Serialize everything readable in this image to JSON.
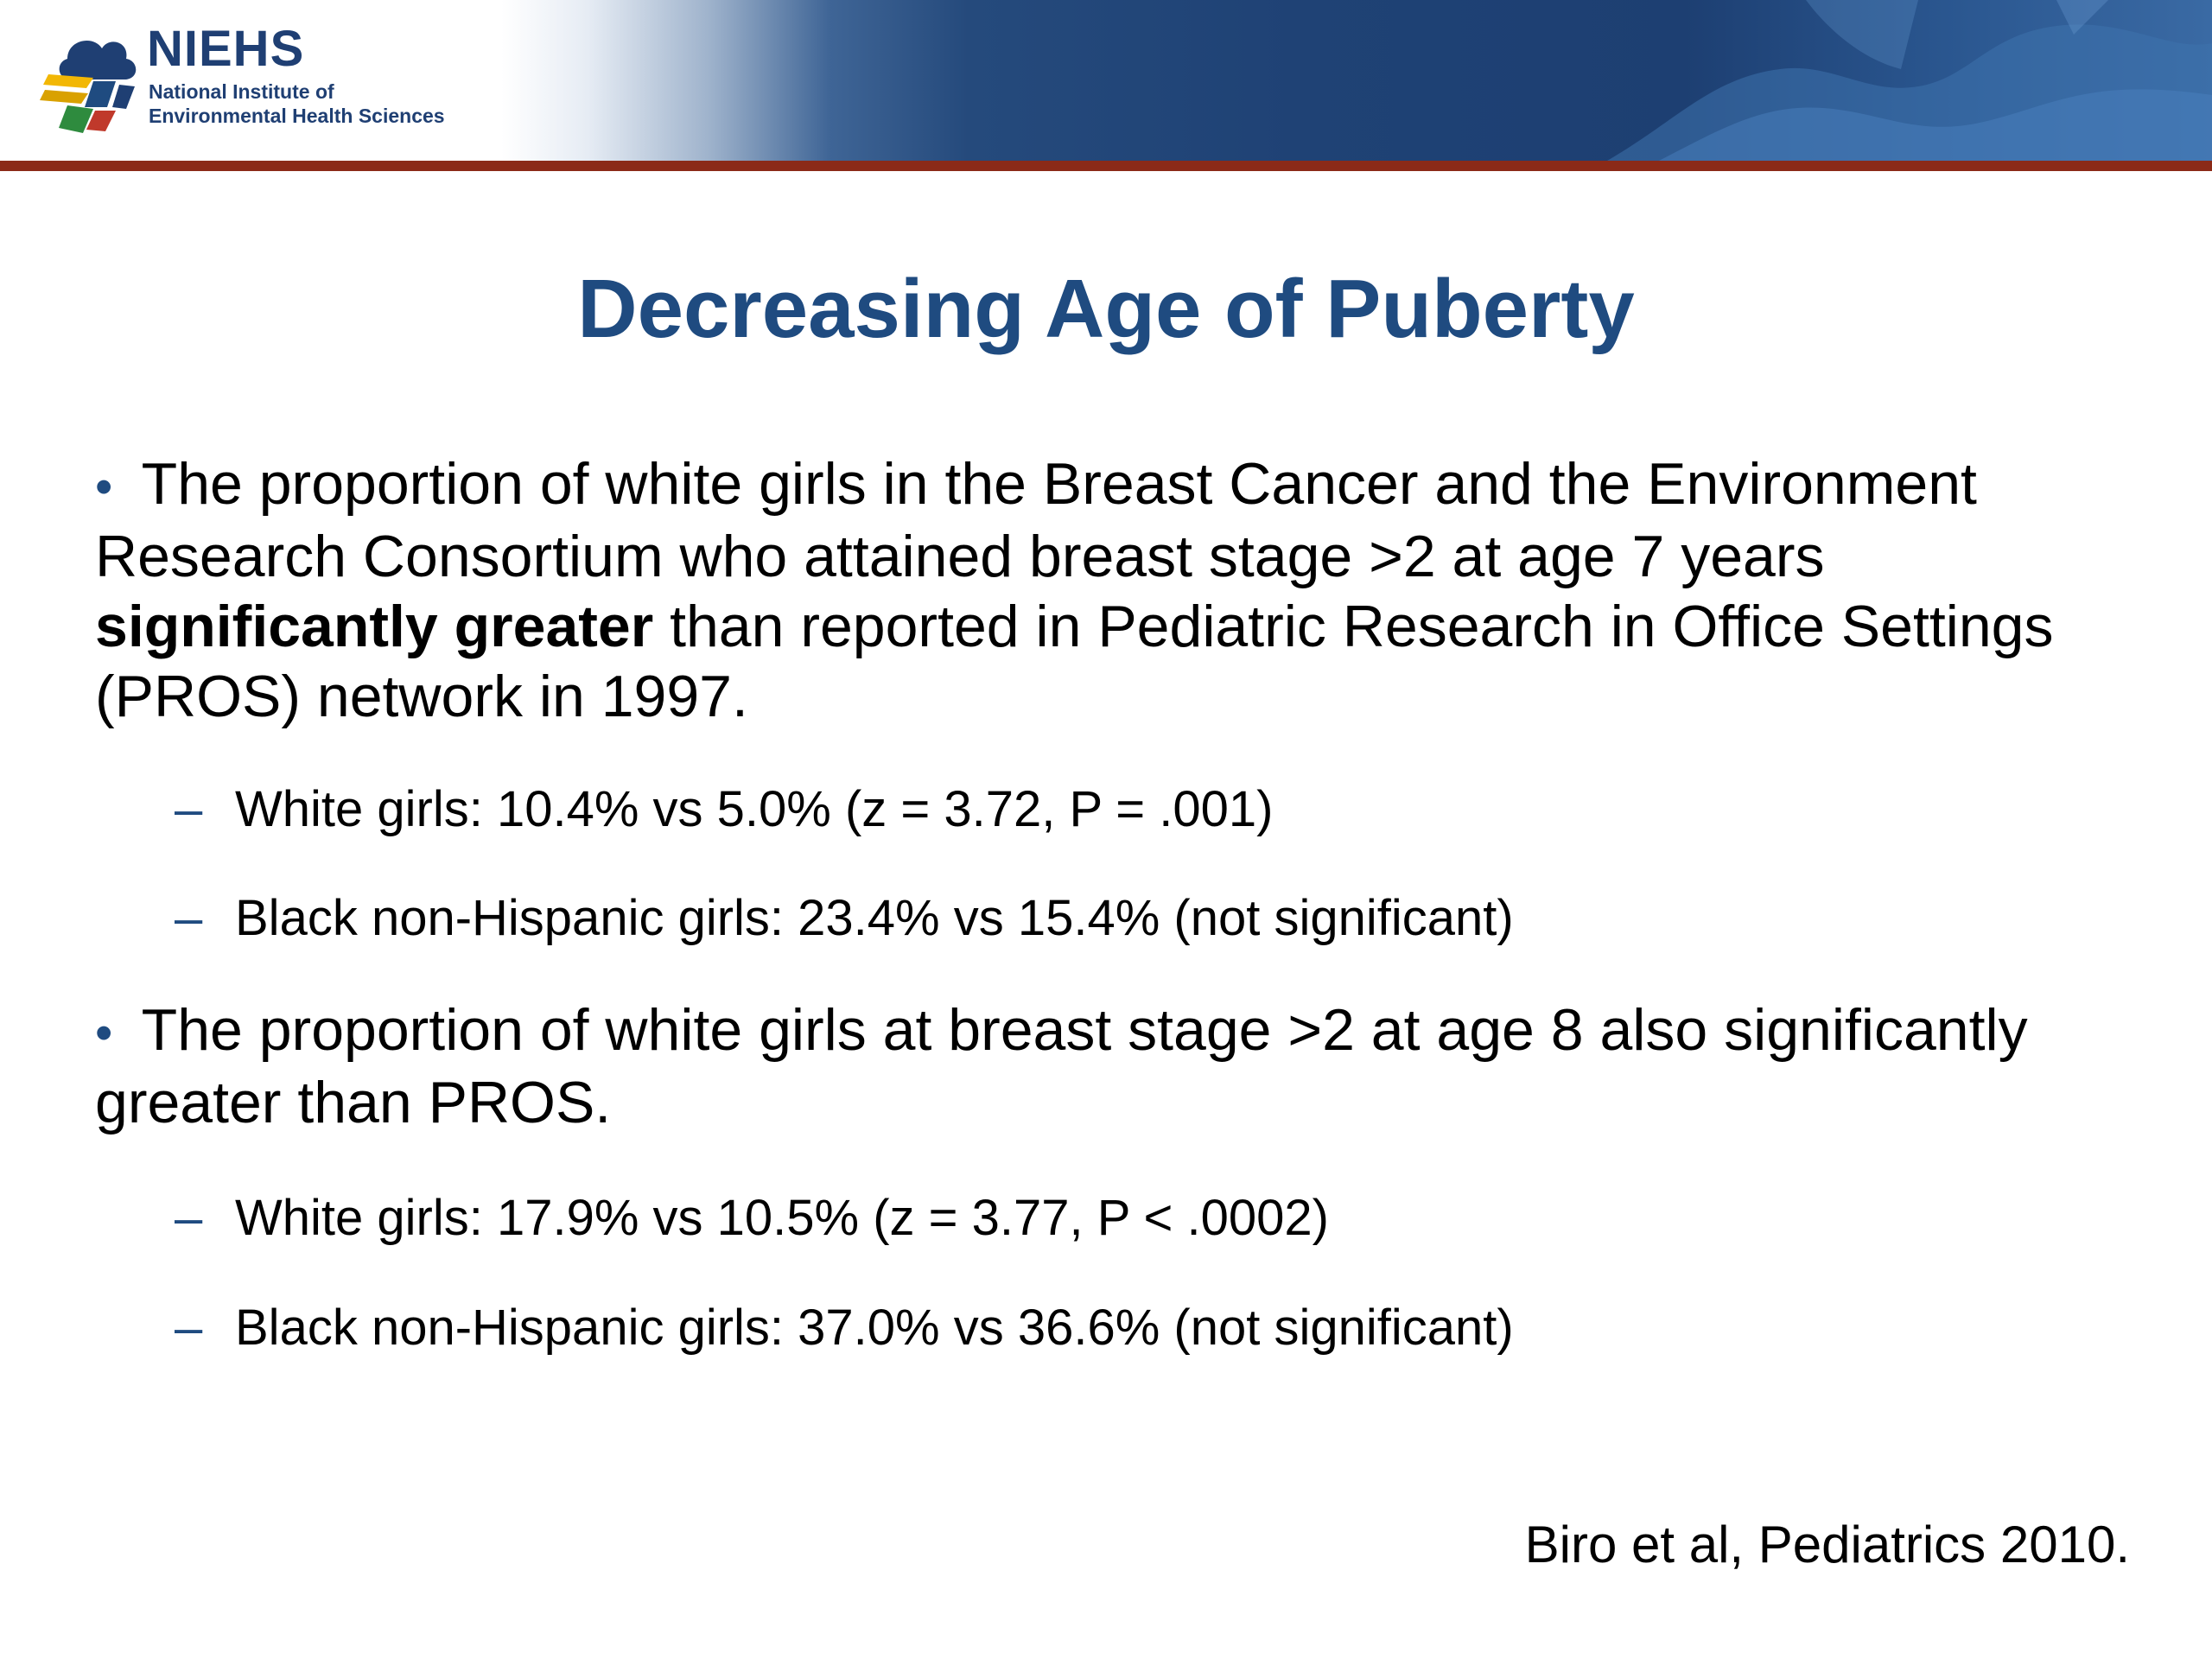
{
  "header": {
    "logo_name": "NIEHS",
    "logo_line1": "National Institute of",
    "logo_line2": "Environmental Health Sciences",
    "accent_color": "#1f4b80",
    "rule_color": "#8b2a18"
  },
  "slide": {
    "title": "Decreasing Age of Puberty",
    "bullets": [
      {
        "lead": "The proportion of white girls in the Breast Cancer and the Environment Research Consortium who attained breast stage >2 at age 7 years ",
        "emphasis": "significantly greater",
        "tail": " than reported in Pediatric Research in Office Settings (PROS) network in 1997.",
        "subitems": [
          "White girls: 10.4% vs 5.0% (z = 3.72, P = .001)",
          "Black non-Hispanic girls: 23.4% vs 15.4% (not significant)"
        ]
      },
      {
        "lead": "The proportion of white girls at breast stage >2 at age 8 also significantly greater than PROS.",
        "subitems": [
          "White girls: 17.9% vs 10.5% (z = 3.77, P < .0002)",
          "Black non-Hispanic girls: 37.0% vs 36.6% (not significant)"
        ]
      }
    ],
    "bullet_glyph": "•",
    "dash_glyph": "–",
    "citation": "Biro et al, Pediatrics 2010."
  }
}
